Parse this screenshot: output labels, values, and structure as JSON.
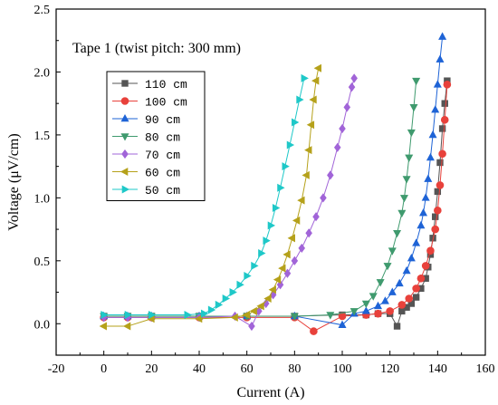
{
  "chart_data": {
    "type": "scatter",
    "annotation": "Tape 1 (twist pitch: 300 mm)",
    "xlabel": "Current (A)",
    "ylabel": "Voltage (μV/cm)",
    "xlim": [
      -20,
      160
    ],
    "ylim": [
      -0.25,
      2.5
    ],
    "xticks": [
      -20,
      0,
      20,
      40,
      60,
      80,
      100,
      120,
      140,
      160
    ],
    "yticks": [
      0.0,
      0.5,
      1.0,
      1.5,
      2.0,
      2.5
    ],
    "ytick_labels": [
      "0.0",
      "0.5",
      "1.0",
      "1.5",
      "2.0",
      "2.5"
    ],
    "grid": false,
    "legend": "upper-left",
    "series": [
      {
        "name": "110  cm",
        "color": "#555555",
        "marker": "square",
        "x": [
          0,
          10,
          20,
          40,
          60,
          80,
          100,
          110,
          115,
          120,
          123,
          125,
          127,
          129,
          131,
          133,
          135,
          136,
          137,
          138,
          139,
          140,
          141,
          142,
          143,
          144
        ],
        "y": [
          0.06,
          0.06,
          0.06,
          0.06,
          0.06,
          0.06,
          0.07,
          0.07,
          0.08,
          0.08,
          -0.02,
          0.1,
          0.13,
          0.16,
          0.21,
          0.28,
          0.36,
          0.45,
          0.55,
          0.68,
          0.85,
          1.05,
          1.28,
          1.55,
          1.75,
          1.93
        ]
      },
      {
        "name": "100  cm",
        "color": "#e8413b",
        "marker": "circle",
        "x": [
          0,
          10,
          20,
          40,
          60,
          80,
          88,
          100,
          110,
          115,
          120,
          125,
          128,
          131,
          133,
          135,
          137,
          139,
          140,
          141,
          142,
          143,
          144
        ],
        "y": [
          0.05,
          0.05,
          0.05,
          0.05,
          0.05,
          0.05,
          -0.06,
          0.06,
          0.07,
          0.08,
          0.1,
          0.15,
          0.2,
          0.28,
          0.36,
          0.46,
          0.58,
          0.75,
          0.9,
          1.1,
          1.35,
          1.62,
          1.9
        ]
      },
      {
        "name": "90  cm",
        "color": "#1e63d6",
        "marker": "triangle-up",
        "x": [
          0,
          10,
          20,
          40,
          60,
          80,
          100,
          105,
          110,
          115,
          118,
          121,
          124,
          127,
          129,
          131,
          133,
          134,
          135,
          136,
          137,
          138,
          139,
          140,
          141,
          142
        ],
        "y": [
          0.06,
          0.06,
          0.06,
          0.06,
          0.06,
          0.06,
          -0.01,
          0.08,
          0.1,
          0.14,
          0.18,
          0.25,
          0.32,
          0.42,
          0.52,
          0.64,
          0.78,
          0.88,
          1.0,
          1.15,
          1.32,
          1.5,
          1.7,
          1.9,
          2.1,
          2.28
        ]
      },
      {
        "name": "80  cm",
        "color": "#3f9a6e",
        "marker": "triangle-down",
        "x": [
          0,
          10,
          20,
          40,
          60,
          80,
          95,
          105,
          110,
          113,
          116,
          119,
          121,
          123,
          125,
          126,
          127,
          128,
          129,
          130,
          131
        ],
        "y": [
          0.06,
          0.06,
          0.06,
          0.06,
          0.06,
          0.06,
          0.07,
          0.1,
          0.16,
          0.22,
          0.33,
          0.46,
          0.58,
          0.72,
          0.88,
          1.0,
          1.15,
          1.32,
          1.52,
          1.72,
          1.93
        ]
      },
      {
        "name": "70  cm",
        "color": "#a164d8",
        "marker": "diamond",
        "x": [
          0,
          10,
          20,
          40,
          55,
          62,
          65,
          68,
          71,
          74,
          77,
          80,
          83,
          86,
          89,
          92,
          95,
          98,
          100,
          102,
          104,
          105
        ],
        "y": [
          0.05,
          0.05,
          0.05,
          0.05,
          0.06,
          -0.02,
          0.1,
          0.16,
          0.23,
          0.31,
          0.4,
          0.5,
          0.6,
          0.72,
          0.85,
          1.0,
          1.18,
          1.4,
          1.55,
          1.72,
          1.88,
          1.95
        ]
      },
      {
        "name": "60  cm",
        "color": "#b5a11a",
        "marker": "triangle-left",
        "x": [
          0,
          10,
          20,
          40,
          55,
          60,
          63,
          66,
          69,
          71,
          73,
          75,
          77,
          79,
          81,
          83,
          85,
          86,
          87,
          88,
          89,
          90
        ],
        "y": [
          -0.02,
          -0.02,
          0.04,
          0.04,
          0.05,
          0.07,
          0.1,
          0.14,
          0.2,
          0.27,
          0.35,
          0.44,
          0.55,
          0.68,
          0.82,
          0.98,
          1.18,
          1.38,
          1.58,
          1.78,
          1.93,
          2.03
        ]
      },
      {
        "name": "50  cm",
        "color": "#1ec8c8",
        "marker": "triangle-right",
        "x": [
          0,
          10,
          20,
          35,
          42,
          45,
          48,
          51,
          54,
          57,
          60,
          63,
          66,
          68,
          70,
          72,
          74,
          76,
          78,
          80,
          82,
          84
        ],
        "y": [
          0.07,
          0.07,
          0.07,
          0.07,
          0.08,
          0.11,
          0.15,
          0.2,
          0.25,
          0.31,
          0.38,
          0.46,
          0.56,
          0.66,
          0.78,
          0.92,
          1.08,
          1.25,
          1.42,
          1.6,
          1.78,
          1.95
        ]
      }
    ]
  }
}
